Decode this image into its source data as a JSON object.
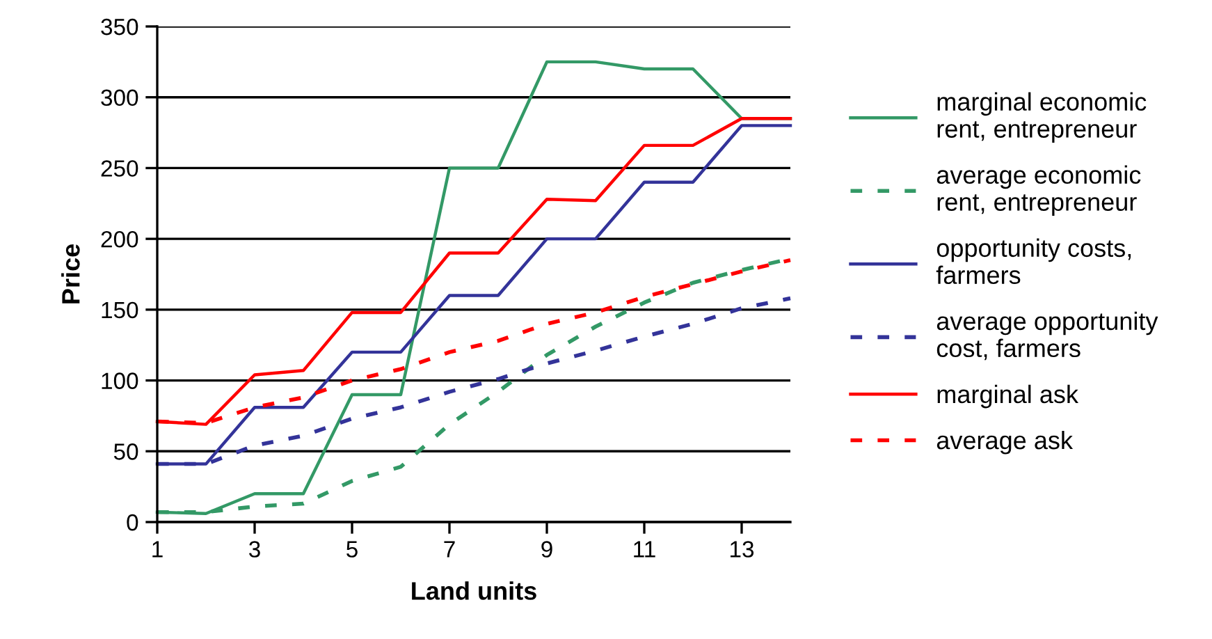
{
  "chart_data": {
    "type": "line",
    "xlabel": "Land units",
    "ylabel": "Price",
    "x": [
      1,
      2,
      3,
      4,
      5,
      6,
      7,
      8,
      9,
      10,
      11,
      12,
      13,
      14
    ],
    "xlim": [
      1,
      14
    ],
    "xticks": [
      1,
      3,
      5,
      7,
      9,
      11,
      13
    ],
    "ylim": [
      0,
      350
    ],
    "yticks": [
      0,
      50,
      100,
      150,
      200,
      250,
      300,
      350
    ],
    "grid": "y",
    "legend": "right",
    "marker": "none",
    "series": [
      {
        "name": "marginal economic\nrent, entrepreneur",
        "color": "#339966",
        "line_style": "solid",
        "values": [
          7,
          6,
          20,
          20,
          90,
          90,
          250,
          250,
          325,
          325,
          320,
          320,
          285,
          285
        ]
      },
      {
        "name": "average economic\nrent, entrepreneur",
        "color": "#339966",
        "line_style": "dashed",
        "values": [
          7,
          7,
          11,
          13,
          29,
          39,
          69,
          92,
          118,
          138,
          155,
          169,
          178,
          186
        ]
      },
      {
        "name": "opportunity costs,\nfarmers",
        "color": "#333399",
        "line_style": "solid",
        "values": [
          41,
          41,
          81,
          81,
          120,
          120,
          160,
          160,
          200,
          200,
          240,
          240,
          280,
          280
        ]
      },
      {
        "name": "average opportunity\ncost, farmers",
        "color": "#333399",
        "line_style": "dashed",
        "values": [
          41,
          41,
          54,
          61,
          73,
          81,
          92,
          101,
          112,
          121,
          131,
          140,
          151,
          158
        ]
      },
      {
        "name": "marginal ask",
        "color": "#ff0000",
        "line_style": "solid",
        "values": [
          71,
          69,
          104,
          107,
          148,
          148,
          190,
          190,
          228,
          227,
          266,
          266,
          285,
          285
        ]
      },
      {
        "name": "average ask",
        "color": "#ff0000",
        "line_style": "dashed",
        "values": [
          71,
          70,
          81,
          88,
          100,
          108,
          120,
          128,
          140,
          148,
          159,
          168,
          177,
          185
        ]
      }
    ]
  }
}
